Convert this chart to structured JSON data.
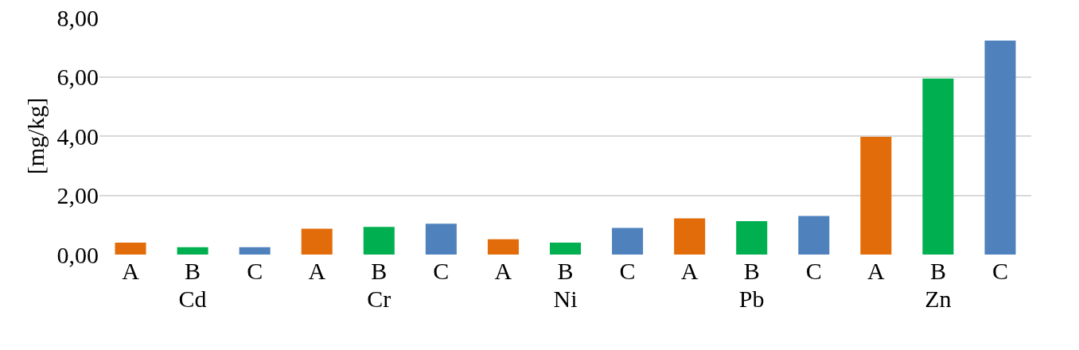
{
  "chart_data": {
    "type": "bar",
    "ylabel": "[mg/kg]",
    "categories": [
      "Cd",
      "Cr",
      "Ni",
      "Pb",
      "Zn"
    ],
    "series": [
      {
        "name": "A",
        "color": "#e36c0a",
        "values": [
          0.4,
          0.87,
          0.52,
          1.22,
          3.97
        ]
      },
      {
        "name": "B",
        "color": "#00b050",
        "values": [
          0.25,
          0.93,
          0.4,
          1.13,
          5.94
        ]
      },
      {
        "name": "C",
        "color": "#4f81bd",
        "values": [
          0.25,
          1.04,
          0.9,
          1.3,
          7.22
        ]
      }
    ],
    "ylim": [
      0,
      8
    ],
    "yticks": [
      {
        "value": 0,
        "label": "0,00"
      },
      {
        "value": 2,
        "label": "2,00"
      },
      {
        "value": 4,
        "label": "4,00"
      },
      {
        "value": 6,
        "label": "6,00"
      },
      {
        "value": 8,
        "label": "8,00"
      }
    ],
    "grid": "y"
  }
}
